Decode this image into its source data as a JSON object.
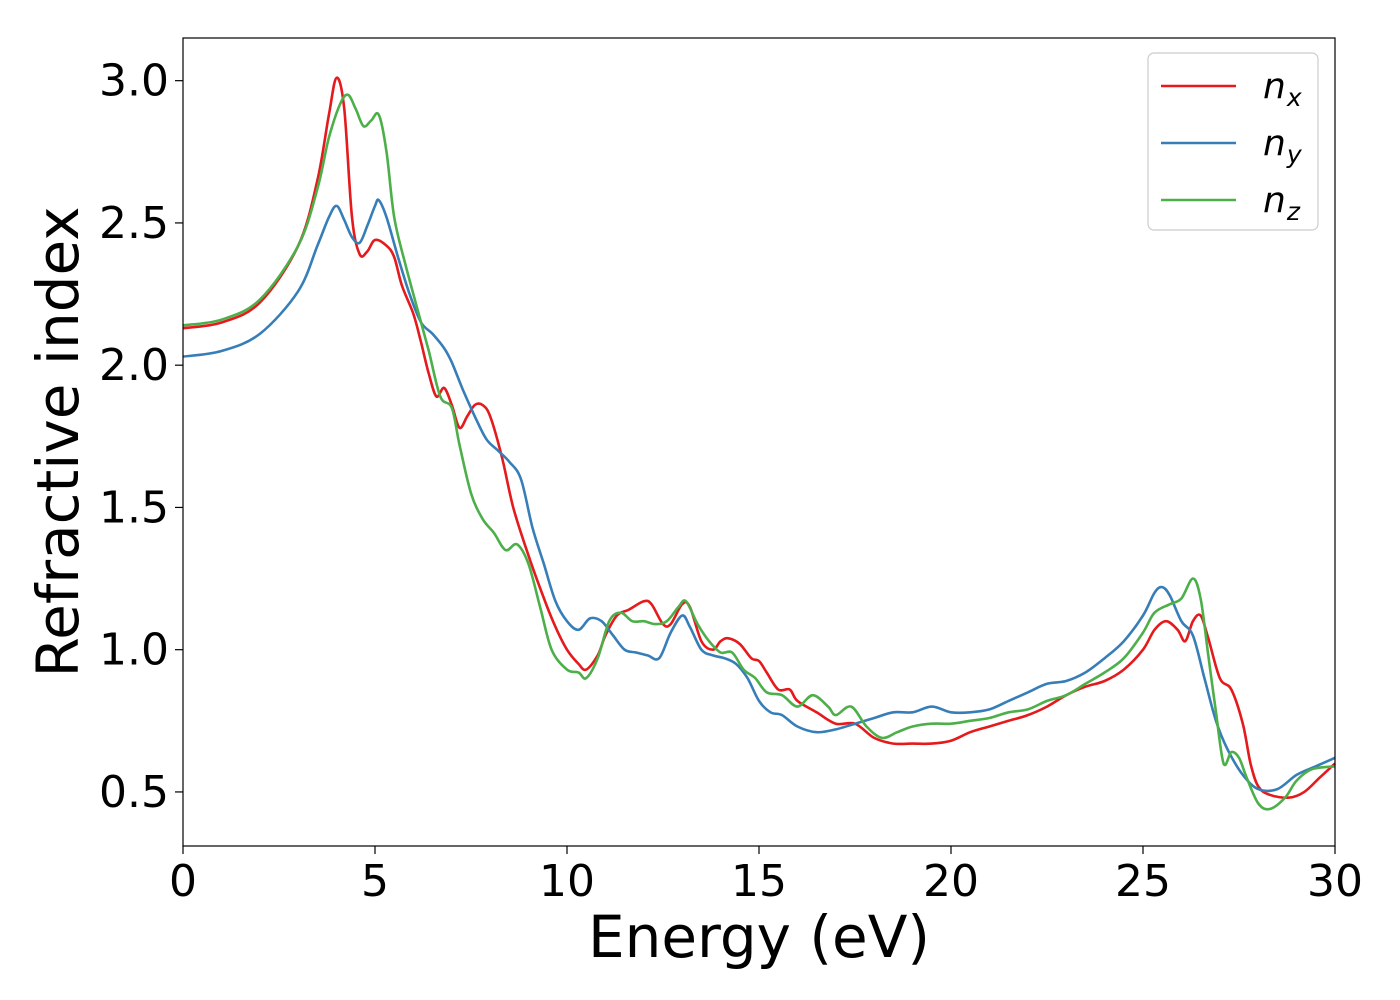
{
  "chart_data": {
    "type": "line",
    "title": "",
    "xlabel": "Energy (eV)",
    "ylabel": "Refractive index",
    "xlim": [
      0,
      30
    ],
    "ylim": [
      0.31,
      3.15
    ],
    "xticks": [
      0,
      5,
      10,
      15,
      20,
      25,
      30
    ],
    "yticks": [
      0.5,
      1.0,
      1.5,
      2.0,
      2.5,
      3.0
    ],
    "xtick_labels": [
      "0",
      "5",
      "10",
      "15",
      "20",
      "25",
      "30"
    ],
    "ytick_labels": [
      "0.5",
      "1.0",
      "1.5",
      "2.0",
      "2.5",
      "3.0"
    ],
    "grid": false,
    "legend_position": "top-right",
    "series": [
      {
        "name": "n",
        "subscript": "x",
        "color": "#e41a1c",
        "points": [
          [
            0,
            2.13
          ],
          [
            1,
            2.15
          ],
          [
            2,
            2.22
          ],
          [
            3,
            2.42
          ],
          [
            3.5,
            2.65
          ],
          [
            3.8,
            2.88
          ],
          [
            4.0,
            3.01
          ],
          [
            4.2,
            2.9
          ],
          [
            4.4,
            2.52
          ],
          [
            4.6,
            2.39
          ],
          [
            4.8,
            2.4
          ],
          [
            5.0,
            2.44
          ],
          [
            5.3,
            2.42
          ],
          [
            5.5,
            2.38
          ],
          [
            5.7,
            2.28
          ],
          [
            6.0,
            2.18
          ],
          [
            6.2,
            2.08
          ],
          [
            6.4,
            1.97
          ],
          [
            6.6,
            1.89
          ],
          [
            6.8,
            1.92
          ],
          [
            7.0,
            1.86
          ],
          [
            7.2,
            1.78
          ],
          [
            7.4,
            1.82
          ],
          [
            7.6,
            1.86
          ],
          [
            7.8,
            1.86
          ],
          [
            8.0,
            1.82
          ],
          [
            8.3,
            1.68
          ],
          [
            8.6,
            1.5
          ],
          [
            9.0,
            1.33
          ],
          [
            9.4,
            1.18
          ],
          [
            9.7,
            1.08
          ],
          [
            10.0,
            1.0
          ],
          [
            10.3,
            0.95
          ],
          [
            10.5,
            0.93
          ],
          [
            10.8,
            0.98
          ],
          [
            11.0,
            1.05
          ],
          [
            11.3,
            1.12
          ],
          [
            11.6,
            1.14
          ],
          [
            12.0,
            1.17
          ],
          [
            12.2,
            1.16
          ],
          [
            12.5,
            1.09
          ],
          [
            12.7,
            1.09
          ],
          [
            13.0,
            1.16
          ],
          [
            13.2,
            1.15
          ],
          [
            13.5,
            1.03
          ],
          [
            13.8,
            1.0
          ],
          [
            14.0,
            1.03
          ],
          [
            14.2,
            1.04
          ],
          [
            14.5,
            1.02
          ],
          [
            14.8,
            0.97
          ],
          [
            15.0,
            0.96
          ],
          [
            15.2,
            0.92
          ],
          [
            15.5,
            0.86
          ],
          [
            15.8,
            0.86
          ],
          [
            16.0,
            0.82
          ],
          [
            16.5,
            0.78
          ],
          [
            17.0,
            0.74
          ],
          [
            17.5,
            0.74
          ],
          [
            18.0,
            0.69
          ],
          [
            18.5,
            0.67
          ],
          [
            19.0,
            0.67
          ],
          [
            19.5,
            0.67
          ],
          [
            20.0,
            0.68
          ],
          [
            20.5,
            0.71
          ],
          [
            21.0,
            0.73
          ],
          [
            21.5,
            0.75
          ],
          [
            22.0,
            0.77
          ],
          [
            22.5,
            0.8
          ],
          [
            23.0,
            0.84
          ],
          [
            23.5,
            0.87
          ],
          [
            24.0,
            0.89
          ],
          [
            24.5,
            0.93
          ],
          [
            25.0,
            1.0
          ],
          [
            25.3,
            1.07
          ],
          [
            25.6,
            1.1
          ],
          [
            25.9,
            1.07
          ],
          [
            26.1,
            1.03
          ],
          [
            26.3,
            1.1
          ],
          [
            26.5,
            1.12
          ],
          [
            26.7,
            1.04
          ],
          [
            27.0,
            0.9
          ],
          [
            27.3,
            0.86
          ],
          [
            27.6,
            0.74
          ],
          [
            27.8,
            0.6
          ],
          [
            28.0,
            0.52
          ],
          [
            28.3,
            0.49
          ],
          [
            28.8,
            0.48
          ],
          [
            29.2,
            0.5
          ],
          [
            29.6,
            0.55
          ],
          [
            30.0,
            0.6
          ]
        ]
      },
      {
        "name": "n",
        "subscript": "y",
        "color": "#377eb8",
        "points": [
          [
            0,
            2.03
          ],
          [
            1,
            2.05
          ],
          [
            2,
            2.11
          ],
          [
            3,
            2.26
          ],
          [
            3.5,
            2.42
          ],
          [
            3.8,
            2.52
          ],
          [
            4.0,
            2.56
          ],
          [
            4.2,
            2.51
          ],
          [
            4.4,
            2.45
          ],
          [
            4.6,
            2.43
          ],
          [
            4.8,
            2.49
          ],
          [
            5.0,
            2.56
          ],
          [
            5.1,
            2.58
          ],
          [
            5.3,
            2.52
          ],
          [
            5.6,
            2.38
          ],
          [
            5.9,
            2.25
          ],
          [
            6.2,
            2.15
          ],
          [
            6.5,
            2.11
          ],
          [
            6.8,
            2.06
          ],
          [
            7.0,
            2.01
          ],
          [
            7.3,
            1.91
          ],
          [
            7.6,
            1.82
          ],
          [
            7.9,
            1.74
          ],
          [
            8.2,
            1.7
          ],
          [
            8.5,
            1.66
          ],
          [
            8.8,
            1.6
          ],
          [
            9.1,
            1.43
          ],
          [
            9.4,
            1.3
          ],
          [
            9.7,
            1.17
          ],
          [
            10.0,
            1.1
          ],
          [
            10.3,
            1.07
          ],
          [
            10.6,
            1.11
          ],
          [
            10.9,
            1.1
          ],
          [
            11.2,
            1.05
          ],
          [
            11.5,
            1.0
          ],
          [
            11.8,
            0.99
          ],
          [
            12.1,
            0.98
          ],
          [
            12.4,
            0.97
          ],
          [
            12.7,
            1.06
          ],
          [
            13.0,
            1.12
          ],
          [
            13.2,
            1.08
          ],
          [
            13.5,
            1.0
          ],
          [
            13.8,
            0.98
          ],
          [
            14.1,
            0.97
          ],
          [
            14.4,
            0.95
          ],
          [
            14.7,
            0.9
          ],
          [
            15.0,
            0.82
          ],
          [
            15.3,
            0.78
          ],
          [
            15.6,
            0.77
          ],
          [
            16.0,
            0.73
          ],
          [
            16.5,
            0.71
          ],
          [
            17.0,
            0.72
          ],
          [
            17.5,
            0.74
          ],
          [
            18.0,
            0.76
          ],
          [
            18.5,
            0.78
          ],
          [
            19.0,
            0.78
          ],
          [
            19.5,
            0.8
          ],
          [
            20.0,
            0.78
          ],
          [
            20.5,
            0.78
          ],
          [
            21.0,
            0.79
          ],
          [
            21.5,
            0.82
          ],
          [
            22.0,
            0.85
          ],
          [
            22.5,
            0.88
          ],
          [
            23.0,
            0.89
          ],
          [
            23.5,
            0.92
          ],
          [
            24.0,
            0.97
          ],
          [
            24.5,
            1.03
          ],
          [
            25.0,
            1.12
          ],
          [
            25.3,
            1.2
          ],
          [
            25.5,
            1.22
          ],
          [
            25.7,
            1.19
          ],
          [
            26.0,
            1.1
          ],
          [
            26.3,
            1.05
          ],
          [
            26.6,
            0.9
          ],
          [
            26.9,
            0.75
          ],
          [
            27.2,
            0.65
          ],
          [
            27.6,
            0.56
          ],
          [
            28.0,
            0.51
          ],
          [
            28.5,
            0.51
          ],
          [
            29.0,
            0.56
          ],
          [
            29.5,
            0.59
          ],
          [
            30.0,
            0.62
          ]
        ]
      },
      {
        "name": "n",
        "subscript": "z",
        "color": "#4daf4a",
        "points": [
          [
            0,
            2.14
          ],
          [
            1,
            2.16
          ],
          [
            2,
            2.23
          ],
          [
            3,
            2.42
          ],
          [
            3.5,
            2.62
          ],
          [
            3.8,
            2.8
          ],
          [
            4.1,
            2.92
          ],
          [
            4.3,
            2.95
          ],
          [
            4.5,
            2.9
          ],
          [
            4.7,
            2.84
          ],
          [
            4.9,
            2.86
          ],
          [
            5.1,
            2.88
          ],
          [
            5.3,
            2.75
          ],
          [
            5.5,
            2.52
          ],
          [
            5.8,
            2.35
          ],
          [
            6.1,
            2.2
          ],
          [
            6.4,
            2.05
          ],
          [
            6.7,
            1.89
          ],
          [
            7.0,
            1.85
          ],
          [
            7.2,
            1.72
          ],
          [
            7.5,
            1.55
          ],
          [
            7.8,
            1.46
          ],
          [
            8.1,
            1.41
          ],
          [
            8.4,
            1.35
          ],
          [
            8.7,
            1.37
          ],
          [
            9.0,
            1.3
          ],
          [
            9.3,
            1.15
          ],
          [
            9.6,
            1.0
          ],
          [
            10.0,
            0.93
          ],
          [
            10.3,
            0.92
          ],
          [
            10.5,
            0.9
          ],
          [
            10.8,
            0.97
          ],
          [
            11.1,
            1.1
          ],
          [
            11.4,
            1.13
          ],
          [
            11.7,
            1.1
          ],
          [
            12.0,
            1.1
          ],
          [
            12.3,
            1.09
          ],
          [
            12.6,
            1.1
          ],
          [
            12.9,
            1.15
          ],
          [
            13.1,
            1.17
          ],
          [
            13.4,
            1.09
          ],
          [
            13.7,
            1.03
          ],
          [
            14.0,
            0.99
          ],
          [
            14.3,
            0.99
          ],
          [
            14.6,
            0.93
          ],
          [
            14.9,
            0.9
          ],
          [
            15.2,
            0.85
          ],
          [
            15.6,
            0.84
          ],
          [
            16.0,
            0.8
          ],
          [
            16.4,
            0.84
          ],
          [
            16.8,
            0.8
          ],
          [
            17.0,
            0.77
          ],
          [
            17.4,
            0.8
          ],
          [
            17.8,
            0.73
          ],
          [
            18.2,
            0.69
          ],
          [
            18.6,
            0.71
          ],
          [
            19.0,
            0.73
          ],
          [
            19.5,
            0.74
          ],
          [
            20.0,
            0.74
          ],
          [
            20.5,
            0.75
          ],
          [
            21.0,
            0.76
          ],
          [
            21.5,
            0.78
          ],
          [
            22.0,
            0.79
          ],
          [
            22.5,
            0.82
          ],
          [
            23.0,
            0.84
          ],
          [
            23.5,
            0.88
          ],
          [
            24.0,
            0.92
          ],
          [
            24.5,
            0.97
          ],
          [
            25.0,
            1.06
          ],
          [
            25.3,
            1.13
          ],
          [
            25.7,
            1.16
          ],
          [
            26.0,
            1.18
          ],
          [
            26.3,
            1.25
          ],
          [
            26.5,
            1.18
          ],
          [
            26.7,
            0.98
          ],
          [
            26.9,
            0.78
          ],
          [
            27.1,
            0.6
          ],
          [
            27.3,
            0.64
          ],
          [
            27.5,
            0.62
          ],
          [
            27.7,
            0.55
          ],
          [
            28.0,
            0.46
          ],
          [
            28.3,
            0.44
          ],
          [
            28.7,
            0.48
          ],
          [
            29.0,
            0.54
          ],
          [
            29.4,
            0.58
          ],
          [
            30.0,
            0.59
          ]
        ]
      }
    ]
  }
}
